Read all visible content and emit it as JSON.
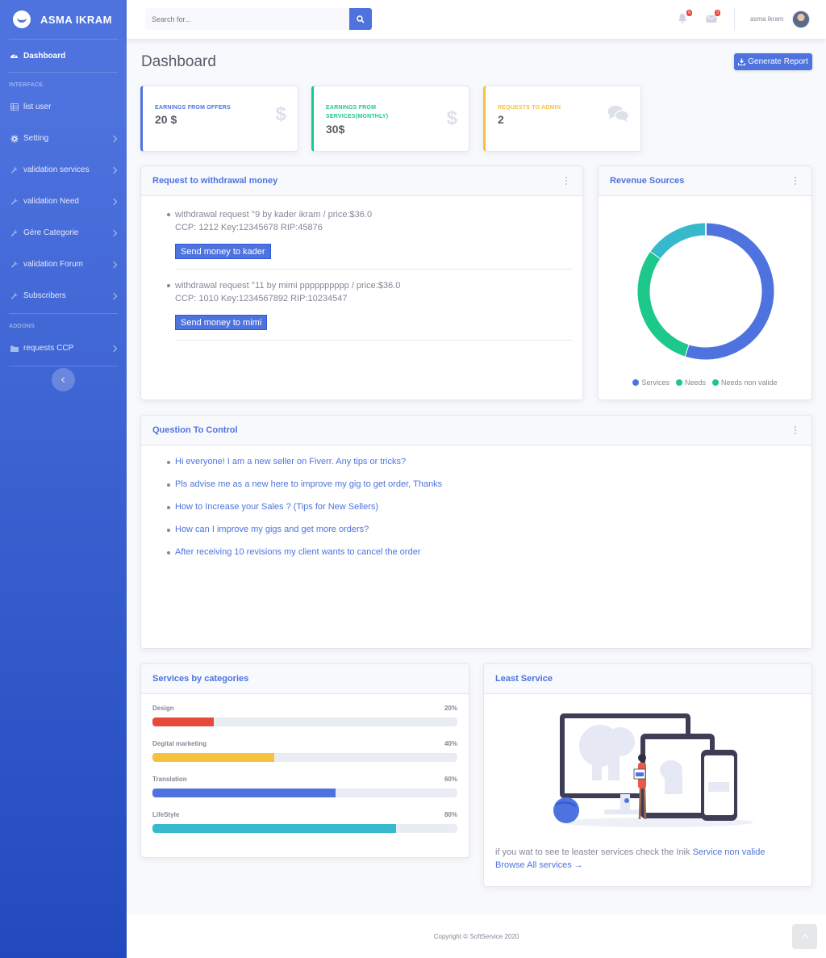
{
  "brand": {
    "name": "ASMA IKRAM",
    "logo_icon": "laugh-wink-icon"
  },
  "sidebar": {
    "dashboard": "Dashboard",
    "heading_interface": "INTERFACE",
    "heading_addons": "ADDONS",
    "items": [
      {
        "label": "list user",
        "icon": "table-icon",
        "has_chevron": false
      },
      {
        "label": "Setting",
        "icon": "cog-icon",
        "has_chevron": true
      },
      {
        "label": "validation services",
        "icon": "wrench-icon",
        "has_chevron": true
      },
      {
        "label": "validation Need",
        "icon": "wrench-icon",
        "has_chevron": true
      },
      {
        "label": "Gére Categorie",
        "icon": "wrench-icon",
        "has_chevron": true
      },
      {
        "label": "validation Forum",
        "icon": "wrench-icon",
        "has_chevron": true
      },
      {
        "label": "Subscribers",
        "icon": "wrench-icon",
        "has_chevron": true
      }
    ],
    "addon_items": [
      {
        "label": "requests CCP",
        "icon": "folder-icon",
        "has_chevron": true
      }
    ]
  },
  "topbar": {
    "search_placeholder": "Search for...",
    "alerts_count": "6",
    "messages_count": "3",
    "user_name": "asma ikram"
  },
  "page": {
    "title": "Dashboard",
    "generate_report": "Generate Report"
  },
  "stats": [
    {
      "label": "EARNINGS FROM OFFERS",
      "value": "20 $",
      "color": "#4e73df",
      "icon": "$"
    },
    {
      "label": "EARNINGS FROM SERVICES(MONTHLY)",
      "value": "30$",
      "color": "#1cc88a",
      "icon": "$"
    },
    {
      "label": "REQUESTS TO ADMIN",
      "value": "2",
      "color": "#f6c23e",
      "icon": "comments"
    }
  ],
  "withdrawal": {
    "title": "Request to withdrawal money",
    "requests": [
      {
        "line1": "withdrawal request °9 by kader ikram / price:$36.0",
        "line2": "CCP: 1212 Key:12345678 RIP:45876",
        "button": "Send money to kader"
      },
      {
        "line1": "withdrawal request °11 by mimi pppppppppp / price:$36.0",
        "line2": "CCP: 1010 Key:1234567892 RIP:10234547",
        "button": "Send money to mimi"
      }
    ]
  },
  "revenue": {
    "title": "Revenue Sources",
    "chart_data": {
      "type": "pie",
      "categories": [
        "Services",
        "Needs",
        "Needs non valide"
      ],
      "values": [
        55,
        30,
        15
      ],
      "colors": [
        "#4e73df",
        "#1cc88a",
        "#36b9cc"
      ],
      "legend_colors": [
        "#4e73df",
        "#1cc88a",
        "#1cc88a"
      ],
      "title": "Revenue Sources",
      "legend": "bottom"
    }
  },
  "questions": {
    "title": "Question To Control",
    "items": [
      "Hi everyone! I am a new seller on Fiverr. Any tips or tricks?",
      "Pls advise me as a new here to improve my gig to get order, Thanks",
      "How to Increase your Sales ? (Tips for New Sellers)",
      "How can I improve my gigs and get more orders?",
      "After receiving 10 revisions my client wants to cancel the order"
    ]
  },
  "categories": {
    "title": "Services by categories",
    "items": [
      {
        "label": "Design",
        "pct": "20%",
        "value": 20,
        "color": "#e74a3b"
      },
      {
        "label": "Degital marketing",
        "pct": "40%",
        "value": 40,
        "color": "#f6c23e"
      },
      {
        "label": "Translation",
        "pct": "60%",
        "value": 60,
        "color": "#4e73df"
      },
      {
        "label": "LifeStyle",
        "pct": "80%",
        "value": 80,
        "color": "#36b9cc"
      }
    ]
  },
  "least": {
    "title": "Least Service",
    "text": "if you wat to see te leaster services check the Inik ",
    "link": "Service non valide",
    "browse": "Browse All services →"
  },
  "footer": {
    "copyright": "Copyright © SoftService 2020"
  }
}
